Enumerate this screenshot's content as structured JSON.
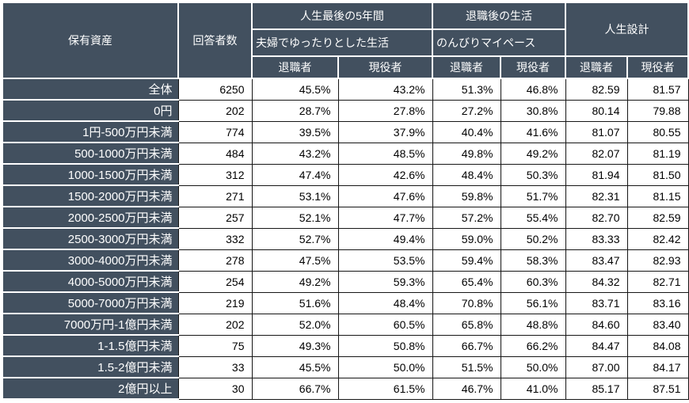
{
  "chart_data": {
    "type": "table",
    "header": {
      "assets": "保有資産",
      "respondents": "回答者数",
      "groups": [
        {
          "title": "人生最後の5年間",
          "subtitle": "夫婦でゆったりとした生活",
          "columns": [
            "退職者",
            "現役者"
          ]
        },
        {
          "title": "退職後の生活",
          "subtitle": "のんびりマイペース",
          "columns": [
            "退職者",
            "現役者"
          ]
        },
        {
          "title": "人生設計",
          "subtitle": "",
          "columns": [
            "退職者",
            "現役者"
          ]
        }
      ]
    },
    "rows": [
      {
        "label": "全体",
        "respondents": "6250",
        "values": [
          "45.5%",
          "43.2%",
          "51.3%",
          "46.8%",
          "82.59",
          "81.57"
        ]
      },
      {
        "label": "0円",
        "respondents": "202",
        "values": [
          "28.7%",
          "27.8%",
          "27.2%",
          "30.8%",
          "80.14",
          "79.88"
        ]
      },
      {
        "label": "1円-500万円未満",
        "respondents": "774",
        "values": [
          "39.5%",
          "37.9%",
          "40.4%",
          "41.6%",
          "81.07",
          "80.55"
        ]
      },
      {
        "label": "500-1000万円未満",
        "respondents": "484",
        "values": [
          "43.2%",
          "48.5%",
          "49.8%",
          "49.2%",
          "82.07",
          "81.19"
        ]
      },
      {
        "label": "1000-1500万円未満",
        "respondents": "312",
        "values": [
          "47.4%",
          "42.6%",
          "48.4%",
          "50.3%",
          "81.94",
          "81.50"
        ]
      },
      {
        "label": "1500-2000万円未満",
        "respondents": "271",
        "values": [
          "53.1%",
          "47.6%",
          "59.8%",
          "51.7%",
          "82.31",
          "81.15"
        ]
      },
      {
        "label": "2000-2500万円未満",
        "respondents": "257",
        "values": [
          "52.1%",
          "47.7%",
          "57.2%",
          "55.4%",
          "82.70",
          "82.59"
        ]
      },
      {
        "label": "2500-3000万円未満",
        "respondents": "332",
        "values": [
          "52.7%",
          "49.4%",
          "59.0%",
          "50.2%",
          "83.33",
          "82.42"
        ]
      },
      {
        "label": "3000-4000万円未満",
        "respondents": "278",
        "values": [
          "47.5%",
          "53.5%",
          "59.4%",
          "58.3%",
          "83.47",
          "82.93"
        ]
      },
      {
        "label": "4000-5000万円未満",
        "respondents": "254",
        "values": [
          "49.2%",
          "59.3%",
          "65.4%",
          "60.3%",
          "84.32",
          "82.71"
        ]
      },
      {
        "label": "5000-7000万円未満",
        "respondents": "219",
        "values": [
          "51.6%",
          "48.4%",
          "70.8%",
          "56.1%",
          "83.71",
          "83.16"
        ]
      },
      {
        "label": "7000万円-1億円未満",
        "respondents": "202",
        "values": [
          "52.0%",
          "60.5%",
          "65.8%",
          "48.8%",
          "84.60",
          "83.40"
        ]
      },
      {
        "label": "1-1.5億円未満",
        "respondents": "75",
        "values": [
          "49.3%",
          "50.8%",
          "66.7%",
          "66.2%",
          "84.47",
          "84.08"
        ]
      },
      {
        "label": "1.5-2億円未満",
        "respondents": "33",
        "values": [
          "45.5%",
          "50.0%",
          "51.5%",
          "50.0%",
          "87.00",
          "84.17"
        ]
      },
      {
        "label": "2億円以上",
        "respondents": "30",
        "values": [
          "66.7%",
          "61.5%",
          "46.7%",
          "41.0%",
          "85.17",
          "87.51"
        ]
      }
    ]
  },
  "colors": {
    "header_bg": "#42505f",
    "header_text": "#ffffff",
    "grid_light_region": "#161616",
    "grid_dark_region": "#ffffff",
    "body_bg": "#ffffff",
    "body_text": "#000000"
  }
}
